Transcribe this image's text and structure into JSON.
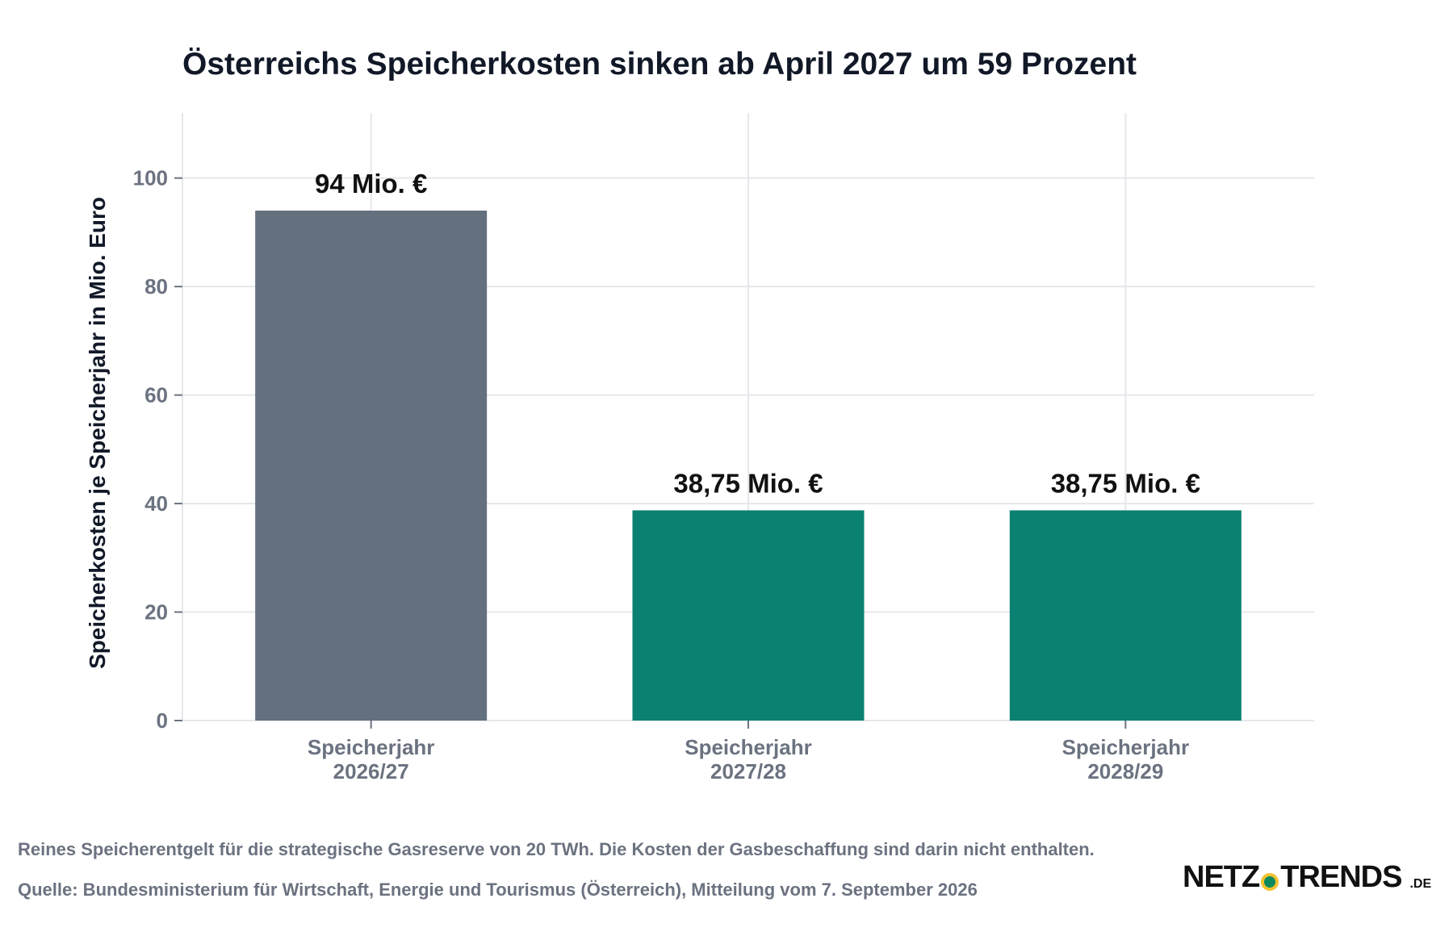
{
  "chart_data": {
    "type": "bar",
    "title": "Österreichs Speicherkosten sinken ab April 2027 um 59 Prozent",
    "ylabel": "Speicherkosten je Speicherjahr in Mio. Euro",
    "xlabel": "",
    "ylim": [
      0,
      112
    ],
    "yticks": [
      0,
      20,
      40,
      60,
      80,
      100
    ],
    "grid": true,
    "categories": [
      [
        "Speicherjahr",
        "2026/27"
      ],
      [
        "Speicherjahr",
        "2027/28"
      ],
      [
        "Speicherjahr",
        "2028/29"
      ]
    ],
    "values": [
      94,
      38.75,
      38.75
    ],
    "data_labels": [
      "94 Mio. €",
      "38,75 Mio. €",
      "38,75 Mio. €"
    ],
    "colors": [
      "#64707d",
      "#0a8172",
      "#0a8172"
    ]
  },
  "footer": {
    "note": "Reines Speicherentgelt für die strategische Gasreserve von 20 TWh. Die Kosten der Gasbeschaffung sind darin nicht enthalten.",
    "source": "Quelle: Bundesministerium für Wirtschaft, Energie und Tourismus (Österreich), Mitteilung vom 7. September 2026"
  },
  "logo": {
    "left": "NETZ",
    "right": "TRENDS",
    "tld": ".DE"
  }
}
